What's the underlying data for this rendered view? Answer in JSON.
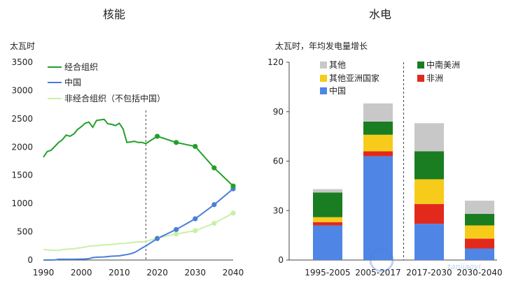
{
  "colors": {
    "oecd": "#22a02a",
    "china": "#4a7fd6",
    "non_oecd": "#c8f0a8",
    "other": "#c8c8c8",
    "cs_america": "#1a7d22",
    "other_asia": "#f7cb1a",
    "africa": "#e2291c",
    "china_bar": "#4f86e6"
  },
  "watermark": "tanjiaoyi",
  "chart_data": [
    {
      "type": "line",
      "title": "核能",
      "ylabel": "太瓦时",
      "xlim": [
        1990,
        2040
      ],
      "ylim": [
        0,
        3500
      ],
      "xticks": [
        1990,
        2000,
        2010,
        2020,
        2030,
        2040
      ],
      "yticks": [
        0,
        500,
        1000,
        1500,
        2000,
        2500,
        3000,
        3500
      ],
      "projection_start": 2017,
      "grid": false,
      "legend_position": "top-left",
      "series": [
        {
          "name": "经合组织",
          "color_key": "oecd",
          "x": [
            1990,
            1991,
            1992,
            1993,
            1994,
            1995,
            1996,
            1997,
            1998,
            1999,
            2000,
            2001,
            2002,
            2003,
            2004,
            2005,
            2006,
            2007,
            2008,
            2009,
            2010,
            2011,
            2012,
            2013,
            2014,
            2015,
            2016,
            2017,
            2020,
            2025,
            2030,
            2035,
            2040
          ],
          "y": [
            1820,
            1920,
            1940,
            2010,
            2080,
            2130,
            2210,
            2190,
            2230,
            2310,
            2360,
            2420,
            2440,
            2350,
            2470,
            2480,
            2490,
            2410,
            2400,
            2380,
            2420,
            2320,
            2080,
            2090,
            2100,
            2080,
            2080,
            2060,
            2190,
            2080,
            2010,
            1630,
            1310
          ],
          "markers_from_index": 28
        },
        {
          "name": "中国",
          "color_key": "china",
          "x": [
            1990,
            1991,
            1992,
            1993,
            1994,
            1995,
            1996,
            1997,
            1998,
            1999,
            2000,
            2001,
            2002,
            2003,
            2004,
            2005,
            2006,
            2007,
            2008,
            2009,
            2010,
            2011,
            2012,
            2013,
            2014,
            2015,
            2016,
            2017,
            2020,
            2025,
            2030,
            2035,
            2040
          ],
          "y": [
            0,
            0,
            0,
            2,
            13,
            13,
            14,
            14,
            14,
            15,
            17,
            18,
            25,
            43,
            50,
            53,
            55,
            62,
            68,
            70,
            74,
            86,
            97,
            111,
            133,
            171,
            213,
            248,
            380,
            540,
            730,
            980,
            1260
          ],
          "markers_from_index": 28
        },
        {
          "name": "非经合组织（不包括中国）",
          "color_key": "non_oecd",
          "x": [
            1990,
            1991,
            1992,
            1993,
            1994,
            1995,
            1996,
            1997,
            1998,
            1999,
            2000,
            2001,
            2002,
            2003,
            2004,
            2005,
            2006,
            2007,
            2008,
            2009,
            2010,
            2011,
            2012,
            2013,
            2014,
            2015,
            2016,
            2017,
            2020,
            2025,
            2030,
            2035,
            2040
          ],
          "y": [
            185,
            180,
            175,
            172,
            170,
            185,
            190,
            195,
            198,
            210,
            220,
            230,
            245,
            250,
            255,
            260,
            268,
            270,
            275,
            280,
            295,
            290,
            300,
            305,
            315,
            320,
            320,
            330,
            390,
            460,
            520,
            650,
            830
          ],
          "markers_from_index": 28
        }
      ]
    },
    {
      "type": "bar",
      "stacked": true,
      "title": "水电",
      "ylabel": "太瓦时，年均发电量增长",
      "ylim": [
        0,
        120
      ],
      "yticks": [
        0,
        30,
        60,
        90,
        120
      ],
      "grid": false,
      "legend_position": "top",
      "categories": [
        "1995-2005",
        "2005-2017",
        "2017-2030",
        "2030-2040"
      ],
      "projection_divider_after_index": 1,
      "series": [
        {
          "name": "中国",
          "color_key": "china_bar",
          "values": [
            21,
            63,
            22,
            7
          ]
        },
        {
          "name": "非洲",
          "color_key": "africa",
          "values": [
            2,
            3,
            12,
            6
          ]
        },
        {
          "name": "其他亚洲国家",
          "color_key": "other_asia",
          "values": [
            3,
            10,
            15,
            8
          ]
        },
        {
          "name": "中南美洲",
          "color_key": "cs_america",
          "values": [
            15,
            8,
            17,
            7
          ]
        },
        {
          "name": "其他",
          "color_key": "other",
          "values": [
            2,
            11,
            17,
            8
          ]
        }
      ],
      "legend_order": [
        "其他",
        "中南美洲",
        "其他亚洲国家",
        "非洲",
        "中国"
      ]
    }
  ]
}
